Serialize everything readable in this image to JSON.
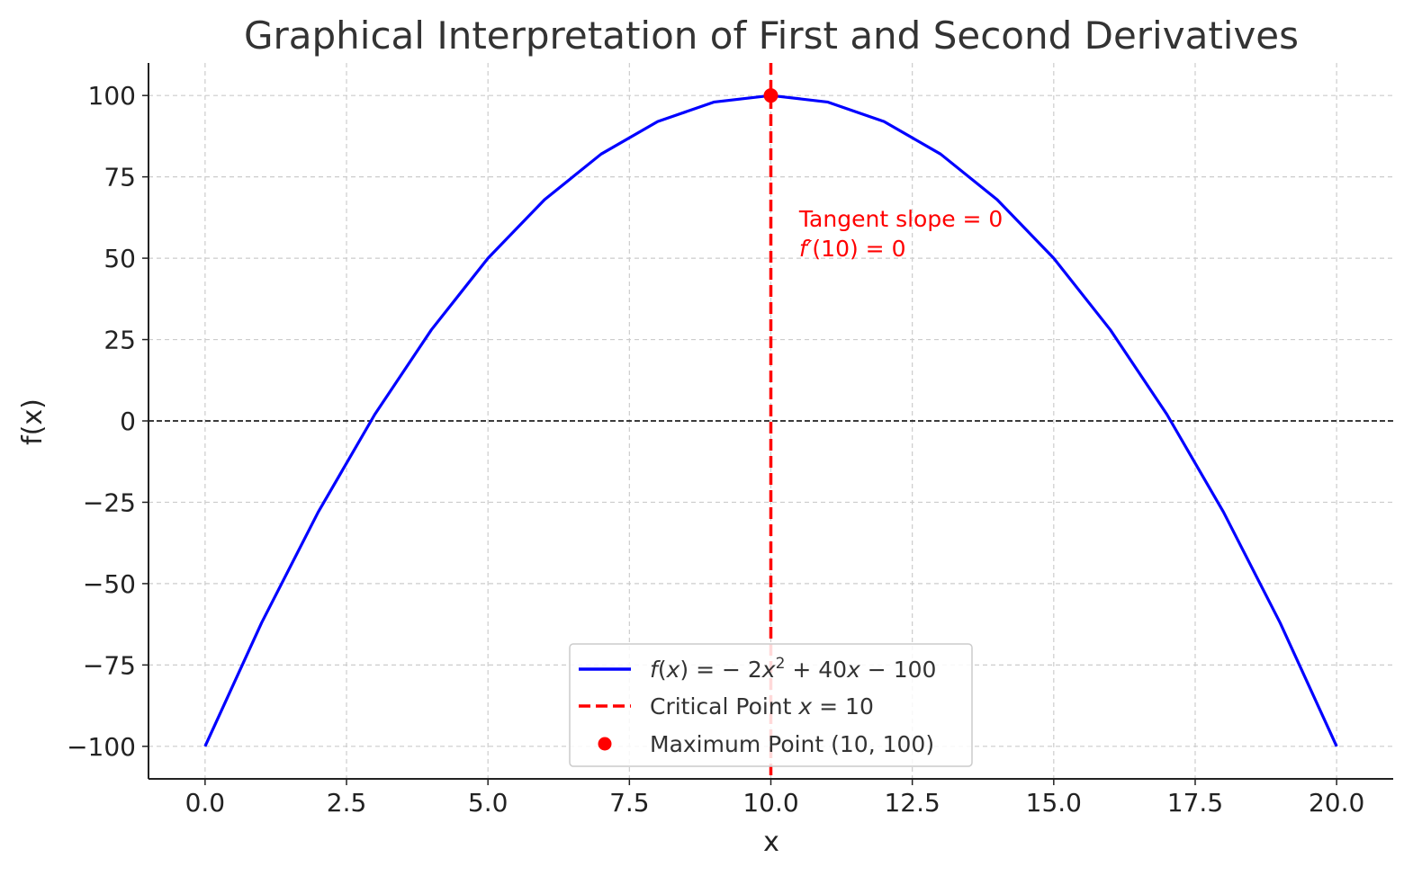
{
  "chart_data": {
    "type": "line",
    "title": "Graphical Interpretation of First and Second Derivatives",
    "xlabel": "x",
    "ylabel": "f(x)",
    "xlim": [
      -1.0,
      21.0
    ],
    "ylim": [
      -110,
      110
    ],
    "xticks": [
      0.0,
      2.5,
      5.0,
      7.5,
      10.0,
      12.5,
      15.0,
      17.5,
      20.0
    ],
    "xtick_labels": [
      "0.0",
      "2.5",
      "5.0",
      "7.5",
      "10.0",
      "12.5",
      "15.0",
      "17.5",
      "20.0"
    ],
    "yticks": [
      -100,
      -75,
      -50,
      -25,
      0,
      25,
      50,
      75,
      100
    ],
    "ytick_labels": [
      "−100",
      "−75",
      "−50",
      "−25",
      "0",
      "25",
      "50",
      "75",
      "100"
    ],
    "grid": true,
    "legend_position": "bottom-center",
    "series": [
      {
        "kind": "curve",
        "color": "#0000ff",
        "x": [
          0,
          1,
          2,
          3,
          4,
          5,
          6,
          7,
          8,
          9,
          10,
          11,
          12,
          13,
          14,
          15,
          16,
          17,
          18,
          19,
          20
        ],
        "y": [
          -100,
          -62,
          -28,
          2,
          28,
          50,
          68,
          82,
          92,
          98,
          100,
          98,
          92,
          82,
          68,
          50,
          28,
          2,
          -28,
          -62,
          -100
        ]
      },
      {
        "kind": "vertical-line",
        "color": "#ff0000",
        "x": 10
      },
      {
        "kind": "point",
        "color": "#ff0000",
        "x": 10,
        "y": 100
      },
      {
        "kind": "horizontal-line",
        "color": "#000000",
        "y": 0
      }
    ],
    "legend": [
      {
        "kind": "curve",
        "color": "#0000ff",
        "label_prefix": "f",
        "label_mid": "(",
        "label_var": "x",
        "label_eq": ") = − 2",
        "label_var2": "x",
        "label_exp": "2",
        "label_plus": " + 40",
        "label_var3": "x",
        "label_tail": " − 100"
      },
      {
        "kind": "vertical-line",
        "color": "#ff0000",
        "label_text": "Critical Point ",
        "label_var": "x",
        "label_tail": " = 10"
      },
      {
        "kind": "point",
        "color": "#ff0000",
        "label_text": "Maximum Point (10, 100)"
      }
    ],
    "annotations": [
      {
        "color": "#ff0000",
        "line1": "Tangent slope = 0",
        "line2_fn": "f′",
        "line2_rest": "(10) = 0",
        "x": 10.5,
        "y": 60
      }
    ]
  }
}
